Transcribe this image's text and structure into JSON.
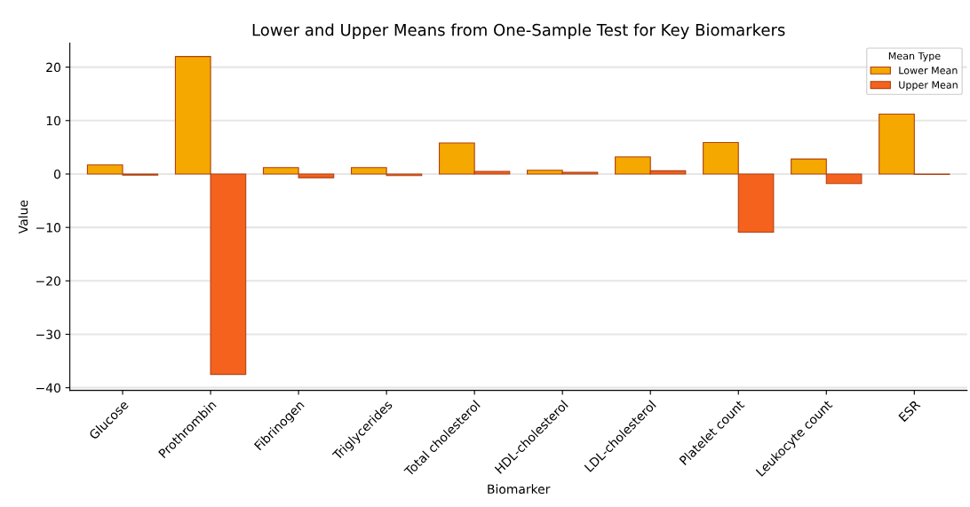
{
  "chart_data": {
    "type": "bar",
    "title": "Lower and Upper Means from One-Sample Test for Key Biomarkers",
    "xlabel": "Biomarker",
    "ylabel": "Value",
    "legend_title": "Mean Type",
    "categories": [
      "Glucose",
      "Prothrombin",
      "Fibrinogen",
      "Triglycerides",
      "Total cholesterol",
      "HDL-cholesterol",
      "LDL-cholesterol",
      "Platelet count",
      "Leukocyte count",
      "ESR"
    ],
    "series": [
      {
        "name": "Lower Mean",
        "color": "#f5a800",
        "values": [
          1.7,
          22,
          1.2,
          1.2,
          5.8,
          0.7,
          3.2,
          5.9,
          2.8,
          11.2
        ]
      },
      {
        "name": "Upper Mean",
        "color": "#f4621e",
        "values": [
          -0.2,
          -37.5,
          -0.7,
          -0.3,
          0.5,
          0.3,
          0.6,
          -10.9,
          -1.8,
          -0.1
        ]
      }
    ],
    "ylim": [
      -40.5,
      24.5
    ],
    "yticks": [
      {
        "value": -40,
        "label": "−40"
      },
      {
        "value": -30,
        "label": "−30"
      },
      {
        "value": -20,
        "label": "−20"
      },
      {
        "value": -10,
        "label": "−10"
      },
      0,
      10,
      20
    ],
    "grid": "y",
    "legend": "top right"
  }
}
